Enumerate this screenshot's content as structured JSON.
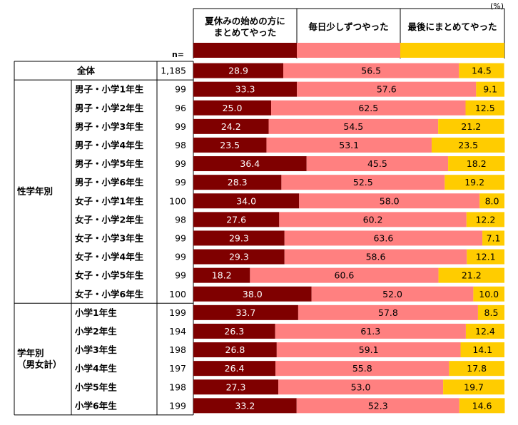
{
  "chart_data": {
    "type": "bar",
    "stacked": true,
    "orientation": "horizontal",
    "unit_label": "(%)",
    "n_label": "n=",
    "xlim": [
      0,
      100
    ],
    "legend_position": "top",
    "series": [
      {
        "name": "夏休みの始めの方に\nまとめてやった",
        "color": "#7f0000",
        "values": [
          28.9,
          33.3,
          25.0,
          24.2,
          23.5,
          36.4,
          28.3,
          34.0,
          27.6,
          29.3,
          29.3,
          18.2,
          38.0,
          33.7,
          26.3,
          26.8,
          26.4,
          27.3,
          33.2
        ]
      },
      {
        "name": "毎日少しずつやった",
        "color": "#ff8080",
        "values": [
          56.5,
          57.6,
          62.5,
          54.5,
          53.1,
          45.5,
          52.5,
          58.0,
          60.2,
          63.6,
          58.6,
          60.6,
          52.0,
          57.8,
          61.3,
          59.1,
          55.8,
          53.0,
          52.3
        ]
      },
      {
        "name": "最後にまとめてやった",
        "color": "#ffcc00",
        "values": [
          14.5,
          9.1,
          12.5,
          21.2,
          23.5,
          18.2,
          19.2,
          8.0,
          12.2,
          7.1,
          12.1,
          21.2,
          10.0,
          8.5,
          12.4,
          14.1,
          17.8,
          19.7,
          14.6
        ]
      }
    ],
    "groups": [
      {
        "label": "",
        "rows": [
          0,
          0
        ]
      },
      {
        "label": "性学年別",
        "rows": [
          1,
          12
        ]
      },
      {
        "label": "学年別\n（男女計）",
        "rows": [
          13,
          18
        ]
      }
    ],
    "categories": [
      "全体",
      "男子・小学1年生",
      "男子・小学2年生",
      "男子・小学3年生",
      "男子・小学4年生",
      "男子・小学5年生",
      "男子・小学6年生",
      "女子・小学1年生",
      "女子・小学2年生",
      "女子・小学3年生",
      "女子・小学4年生",
      "女子・小学5年生",
      "女子・小学6年生",
      "小学1年生",
      "小学2年生",
      "小学3年生",
      "小学4年生",
      "小学5年生",
      "小学6年生"
    ],
    "n": [
      "1,185",
      "99",
      "96",
      "99",
      "98",
      "99",
      "99",
      "100",
      "98",
      "99",
      "99",
      "99",
      "100",
      "199",
      "194",
      "198",
      "197",
      "198",
      "199"
    ],
    "value_labels": [
      [
        "28.9",
        "56.5",
        "14.5"
      ],
      [
        "33.3",
        "57.6",
        "9.1"
      ],
      [
        "25.0",
        "62.5",
        "12.5"
      ],
      [
        "24.2",
        "54.5",
        "21.2"
      ],
      [
        "23.5",
        "53.1",
        "23.5"
      ],
      [
        "36.4",
        "45.5",
        "18.2"
      ],
      [
        "28.3",
        "52.5",
        "19.2"
      ],
      [
        "34.0",
        "58.0",
        "8.0"
      ],
      [
        "27.6",
        "60.2",
        "12.2"
      ],
      [
        "29.3",
        "63.6",
        "7.1"
      ],
      [
        "29.3",
        "58.6",
        "12.1"
      ],
      [
        "18.2",
        "60.6",
        "21.2"
      ],
      [
        "38.0",
        "52.0",
        "10.0"
      ],
      [
        "33.7",
        "57.8",
        "8.5"
      ],
      [
        "26.3",
        "61.3",
        "12.4"
      ],
      [
        "26.8",
        "59.1",
        "14.1"
      ],
      [
        "26.4",
        "55.8",
        "17.8"
      ],
      [
        "27.3",
        "53.0",
        "19.7"
      ],
      [
        "33.2",
        "52.3",
        "14.6"
      ]
    ],
    "label_colors": [
      "#ffffff",
      "#000000",
      "#000000"
    ]
  }
}
